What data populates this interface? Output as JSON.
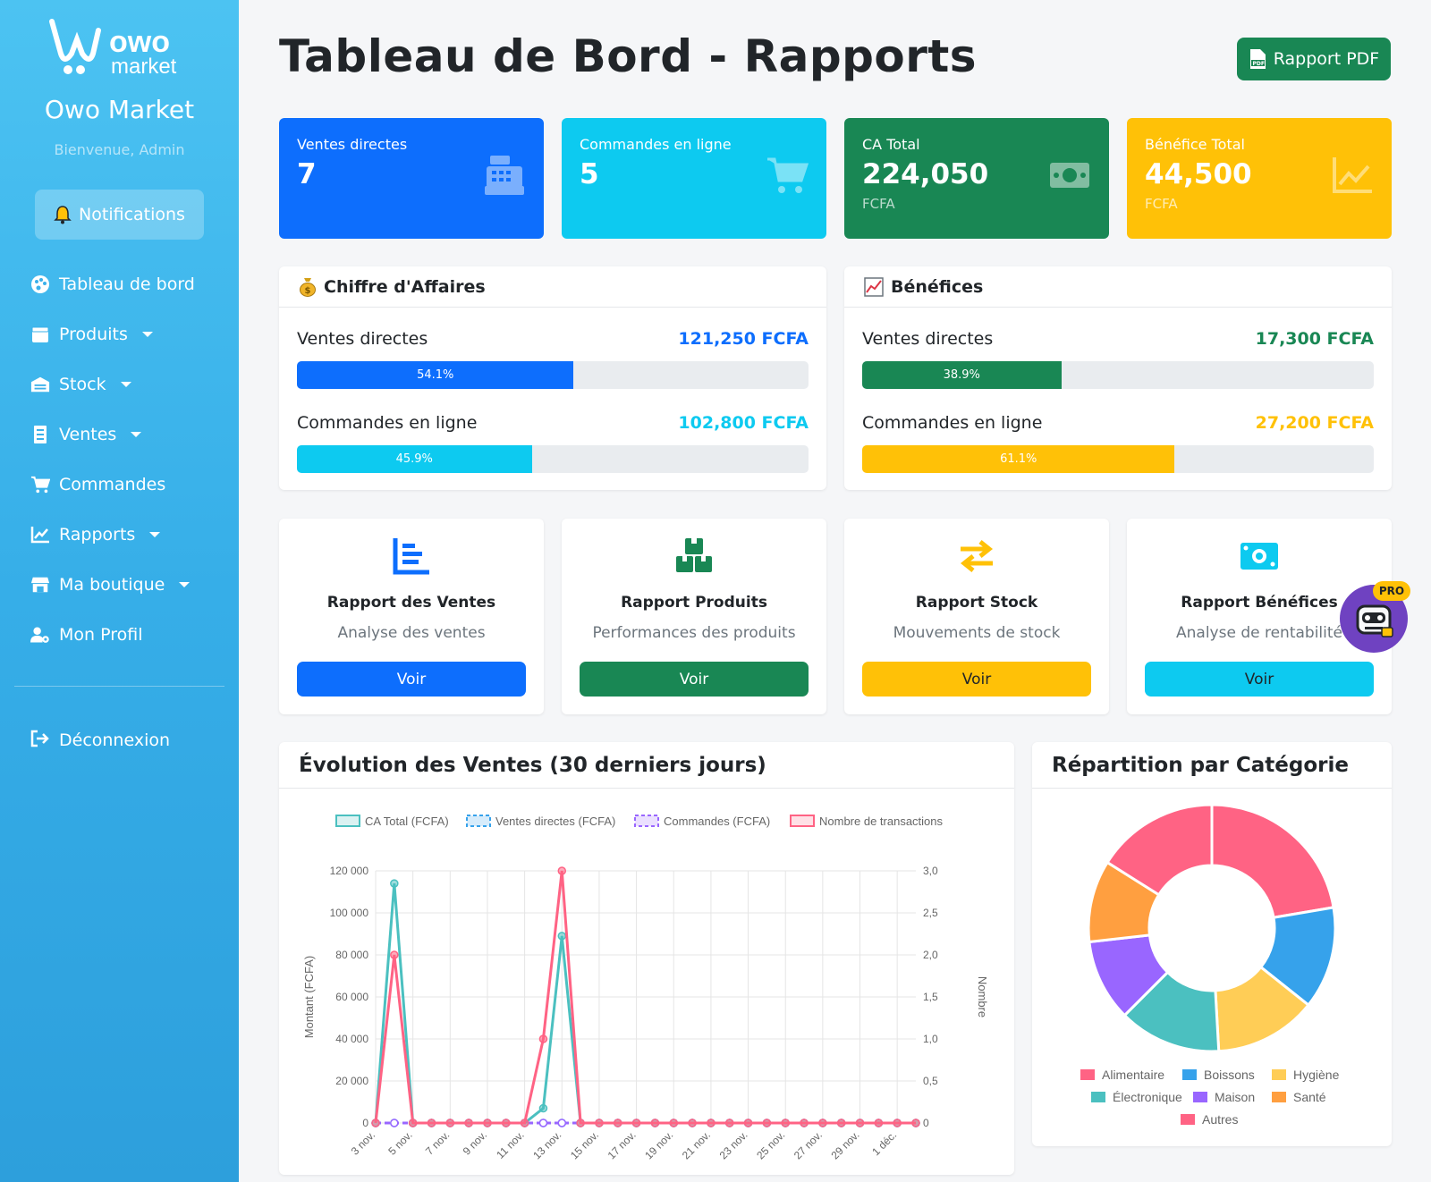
{
  "sidebar": {
    "logo_text_1": "owo",
    "logo_text_2": "market",
    "brand": "Owo Market",
    "welcome": "Bienvenue, Admin",
    "notifications": "Notifications",
    "items": [
      {
        "label": "Tableau de bord",
        "icon": "palette-icon",
        "dropdown": false
      },
      {
        "label": "Produits",
        "icon": "box-icon",
        "dropdown": true
      },
      {
        "label": "Stock",
        "icon": "warehouse-icon",
        "dropdown": true
      },
      {
        "label": "Ventes",
        "icon": "receipt-icon",
        "dropdown": true
      },
      {
        "label": "Commandes",
        "icon": "cart-icon",
        "dropdown": false
      },
      {
        "label": "Rapports",
        "icon": "chart-line-icon",
        "dropdown": true
      },
      {
        "label": "Ma boutique",
        "icon": "store-icon",
        "dropdown": true
      },
      {
        "label": "Mon Profil",
        "icon": "user-cog-icon",
        "dropdown": false
      }
    ],
    "logout": "Déconnexion"
  },
  "header": {
    "title": "Tableau de Bord - Rapports",
    "pdf_button": "Rapport PDF"
  },
  "stats": [
    {
      "label": "Ventes directes",
      "value": "7",
      "sub": "",
      "color": "#0d6efd",
      "icon": "cash-register-icon"
    },
    {
      "label": "Commandes en ligne",
      "value": "5",
      "sub": "",
      "color": "#0dcaf0",
      "icon": "cart-icon"
    },
    {
      "label": "CA Total",
      "value": "224,050",
      "sub": "FCFA",
      "color": "#198754",
      "icon": "money-bill-icon"
    },
    {
      "label": "Bénéfice Total",
      "value": "44,500",
      "sub": "FCFA",
      "color": "#ffc107",
      "icon": "chart-line-icon"
    }
  ],
  "revenue_card": {
    "title": "Chiffre d'Affaires",
    "icon": "money-bag-icon",
    "rows": [
      {
        "label": "Ventes directes",
        "value": "121,250 FCFA",
        "pct": 54.1,
        "pct_label": "54.1%",
        "color": "#0d6efd"
      },
      {
        "label": "Commandes en ligne",
        "value": "102,800 FCFA",
        "pct": 45.9,
        "pct_label": "45.9%",
        "color": "#0dcaf0"
      }
    ]
  },
  "profit_card": {
    "title": "Bénéfices",
    "icon": "chart-up-icon",
    "rows": [
      {
        "label": "Ventes directes",
        "value": "17,300 FCFA",
        "pct": 38.9,
        "pct_label": "38.9%",
        "color": "#198754"
      },
      {
        "label": "Commandes en ligne",
        "value": "27,200 FCFA",
        "pct": 61.1,
        "pct_label": "61.1%",
        "color": "#ffc107"
      }
    ]
  },
  "reports": [
    {
      "title": "Rapport des Ventes",
      "desc": "Analyse des ventes",
      "button": "Voir",
      "color": "#0d6efd",
      "text_color": "#ffffff",
      "icon": "chart-bar-icon"
    },
    {
      "title": "Rapport Produits",
      "desc": "Performances des produits",
      "button": "Voir",
      "color": "#198754",
      "text_color": "#ffffff",
      "icon": "boxes-icon"
    },
    {
      "title": "Rapport Stock",
      "desc": "Mouvements de stock",
      "button": "Voir",
      "color": "#ffc107",
      "text_color": "#212529",
      "icon": "exchange-icon"
    },
    {
      "title": "Rapport Bénéfices",
      "desc": "Analyse de rentabilité",
      "button": "Voir",
      "color": "#0dcaf0",
      "text_color": "#212529",
      "icon": "money-bill-icon"
    }
  ],
  "pro_badge": "PRO",
  "chart_data": [
    {
      "type": "line",
      "title": "Évolution des Ventes (30 derniers jours)",
      "ylabel": "Montant (FCFA)",
      "y2label": "Nombre",
      "ylim": [
        0,
        120000
      ],
      "y2lim": [
        0,
        3
      ],
      "yticks": [
        "120 000",
        "100 000",
        "80 000",
        "60 000",
        "40 000",
        "20 000",
        "0"
      ],
      "y2ticks": [
        "3,0",
        "2,5",
        "2,0",
        "1,5",
        "1,0",
        "0,5",
        "0"
      ],
      "xtick_labels": [
        "3 nov.",
        "5 nov.",
        "7 nov.",
        "9 nov.",
        "11 nov.",
        "13 nov.",
        "15 nov.",
        "17 nov.",
        "19 nov.",
        "21 nov.",
        "23 nov.",
        "25 nov.",
        "27 nov.",
        "29 nov.",
        "1 déc."
      ],
      "x": [
        "3 nov.",
        "4 nov.",
        "5 nov.",
        "6 nov.",
        "7 nov.",
        "8 nov.",
        "9 nov.",
        "10 nov.",
        "11 nov.",
        "12 nov.",
        "13 nov.",
        "14 nov.",
        "15 nov.",
        "16 nov.",
        "17 nov.",
        "18 nov.",
        "19 nov.",
        "20 nov.",
        "21 nov.",
        "22 nov.",
        "23 nov.",
        "24 nov.",
        "25 nov.",
        "26 nov.",
        "27 nov.",
        "28 nov.",
        "29 nov.",
        "30 nov.",
        "1 déc.",
        "2 déc."
      ],
      "grid": true,
      "legend": "top",
      "series": [
        {
          "name": "CA Total (FCFA)",
          "axis": "left",
          "color": "#4bc0c0",
          "style": "solid",
          "values": [
            0,
            114000,
            0,
            0,
            0,
            0,
            0,
            0,
            0,
            7000,
            89000,
            0,
            0,
            0,
            0,
            0,
            0,
            0,
            0,
            0,
            0,
            0,
            0,
            0,
            0,
            0,
            0,
            0,
            0,
            0
          ]
        },
        {
          "name": "Ventes directes (FCFA)",
          "axis": "left",
          "color": "#36a2eb",
          "style": "dashed",
          "values": [
            0,
            0,
            0,
            0,
            0,
            0,
            0,
            0,
            0,
            0,
            0,
            0,
            0,
            0,
            0,
            0,
            0,
            0,
            0,
            0,
            0,
            0,
            0,
            0,
            0,
            0,
            0,
            0,
            0,
            0
          ]
        },
        {
          "name": "Commandes (FCFA)",
          "axis": "left",
          "color": "#9966ff",
          "style": "dashed",
          "values": [
            0,
            0,
            0,
            0,
            0,
            0,
            0,
            0,
            0,
            0,
            0,
            0,
            0,
            0,
            0,
            0,
            0,
            0,
            0,
            0,
            0,
            0,
            0,
            0,
            0,
            0,
            0,
            0,
            0,
            0
          ]
        },
        {
          "name": "Nombre de transactions",
          "axis": "right",
          "color": "#ff6384",
          "style": "solid",
          "values": [
            0,
            2,
            0,
            0,
            0,
            0,
            0,
            0,
            0,
            1,
            3,
            0,
            0,
            0,
            0,
            0,
            0,
            0,
            0,
            0,
            0,
            0,
            0,
            0,
            0,
            0,
            0,
            0,
            0,
            0
          ]
        }
      ]
    },
    {
      "type": "pie",
      "title": "Répartition par Catégorie",
      "legend": "bottom",
      "categories": [
        "Alimentaire",
        "Boissons",
        "Hygiène",
        "Électronique",
        "Maison",
        "Santé",
        "Autres"
      ],
      "values": [
        25,
        15,
        15,
        15,
        12,
        12,
        18
      ],
      "colors": [
        "#ff6384",
        "#36a2eb",
        "#ffcd56",
        "#4bc0c0",
        "#9966ff",
        "#ff9f40",
        "#ff6384"
      ]
    }
  ]
}
